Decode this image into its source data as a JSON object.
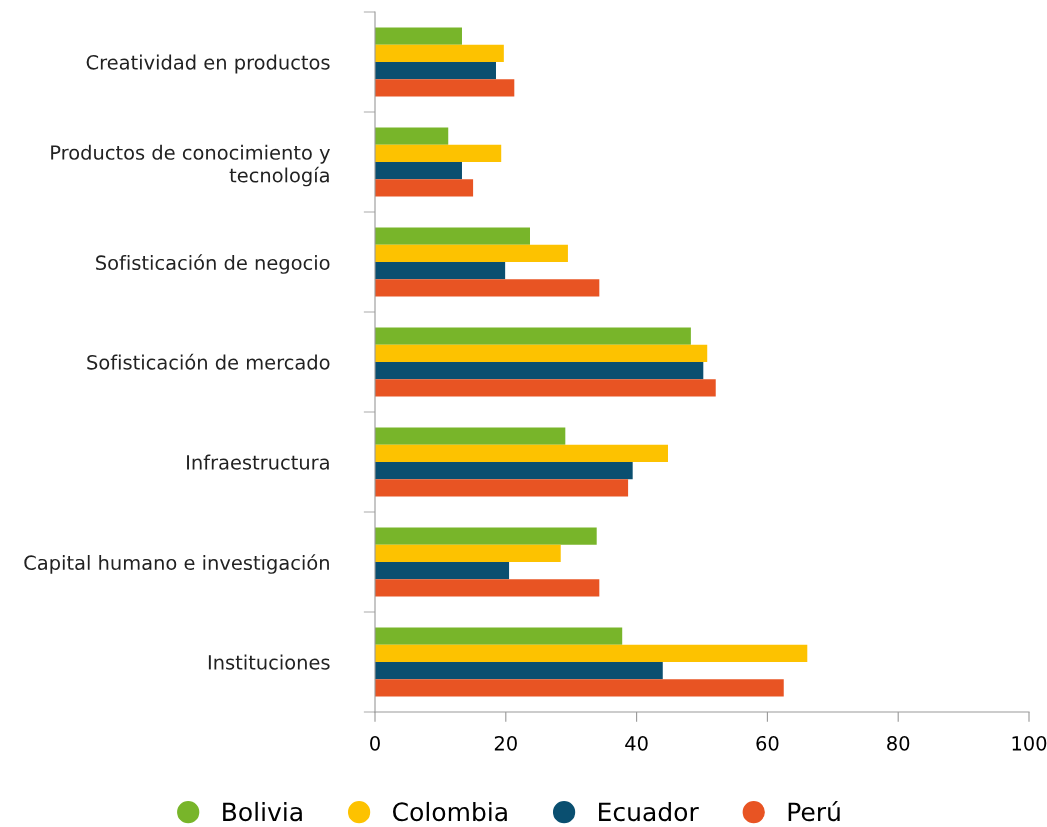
{
  "chart_data": {
    "type": "bar",
    "orientation": "horizontal",
    "categories": [
      "Creatividad en productos",
      "Productos de conocimiento y\ntecnología",
      "Sofisticación de negocio",
      "Sofisticación de mercado",
      "Infraestructura",
      "Capital humano e investigación",
      "Instituciones"
    ],
    "series": [
      {
        "name": "Bolivia",
        "color": "#78b52a",
        "values": [
          13.3,
          11.2,
          23.7,
          48.3,
          29.1,
          33.9,
          37.8
        ]
      },
      {
        "name": "Colombia",
        "color": "#fdc200",
        "values": [
          19.7,
          19.3,
          29.5,
          50.8,
          44.8,
          28.4,
          66.1
        ]
      },
      {
        "name": "Ecuador",
        "color": "#0a4f70",
        "values": [
          18.5,
          13.3,
          19.9,
          50.2,
          39.4,
          20.5,
          44.0
        ]
      },
      {
        "name": "Perú",
        "color": "#e85423",
        "values": [
          21.3,
          15.0,
          34.3,
          52.1,
          38.7,
          34.3,
          62.5
        ]
      }
    ],
    "xlim": [
      0,
      100
    ],
    "xticks": [
      0,
      20,
      40,
      60,
      80,
      100
    ],
    "grid": false,
    "legend": "bottom",
    "marker": "circle"
  }
}
